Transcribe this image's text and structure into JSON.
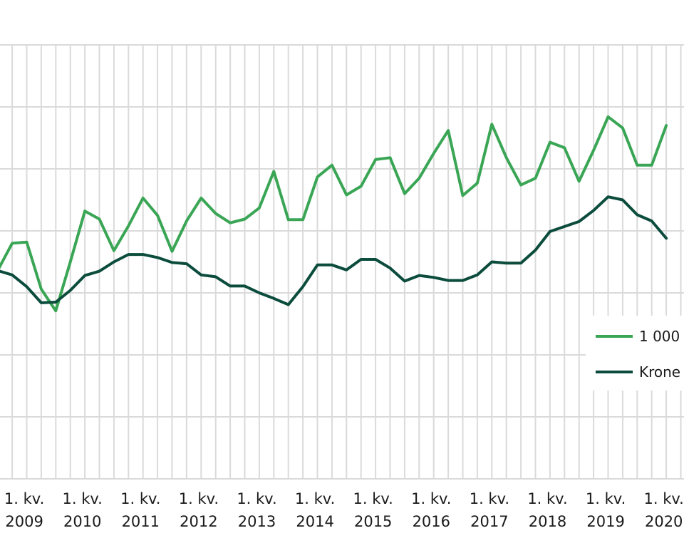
{
  "chart_data": {
    "type": "line",
    "title": "",
    "xlabel": "",
    "ylabel": "",
    "x": [
      "2008K4",
      "2009K1",
      "2009K2",
      "2009K3",
      "2009K4",
      "2010K1",
      "2010K2",
      "2010K3",
      "2010K4",
      "2011K1",
      "2011K2",
      "2011K3",
      "2011K4",
      "2012K1",
      "2012K2",
      "2012K3",
      "2012K4",
      "2013K1",
      "2013K2",
      "2013K3",
      "2013K4",
      "2014K1",
      "2014K2",
      "2014K3",
      "2014K4",
      "2015K1",
      "2015K2",
      "2015K3",
      "2015K4",
      "2016K1",
      "2016K2",
      "2016K3",
      "2016K4",
      "2017K1",
      "2017K2",
      "2017K3",
      "2017K4",
      "2018K1",
      "2018K2",
      "2018K3",
      "2018K4",
      "2019K1",
      "2019K2",
      "2019K3",
      "2019K4",
      "2020K1",
      "2020K2"
    ],
    "x_tick_labels": [
      {
        "line1": "1. kv.",
        "line2": "2009"
      },
      {
        "line1": "1. kv.",
        "line2": "2010"
      },
      {
        "line1": "1. kv.",
        "line2": "2011"
      },
      {
        "line1": "1. kv.",
        "line2": "2012"
      },
      {
        "line1": "1. kv.",
        "line2": "2013"
      },
      {
        "line1": "1. kv.",
        "line2": "2014"
      },
      {
        "line1": "1. kv.",
        "line2": "2015"
      },
      {
        "line1": "1. kv.",
        "line2": "2016"
      },
      {
        "line1": "1. kv.",
        "line2": "2017"
      },
      {
        "line1": "1. kv.",
        "line2": "2018"
      },
      {
        "line1": "1. kv.",
        "line2": "2019"
      },
      {
        "line1": "1. kv.",
        "line2": "2020"
      }
    ],
    "ylim": [
      0,
      7
    ],
    "grid": true,
    "legend_placement": "right",
    "series": [
      {
        "name": "1 000",
        "color": "#3aa655",
        "values": [
          3.36,
          3.8,
          3.82,
          3.06,
          2.71,
          3.5,
          4.32,
          4.19,
          3.68,
          4.08,
          4.53,
          4.25,
          3.67,
          4.16,
          4.53,
          4.28,
          4.13,
          4.19,
          4.37,
          4.96,
          4.18,
          4.18,
          4.87,
          5.06,
          4.58,
          4.72,
          5.15,
          5.18,
          4.6,
          4.85,
          5.25,
          5.62,
          4.57,
          4.77,
          5.72,
          5.18,
          4.74,
          4.85,
          5.43,
          5.34,
          4.8,
          5.3,
          5.84,
          5.66,
          5.06,
          5.06,
          5.7
        ]
      },
      {
        "name": "Krone",
        "color": "#0b4c3c",
        "values": [
          3.36,
          3.29,
          3.1,
          2.84,
          2.85,
          3.04,
          3.28,
          3.35,
          3.5,
          3.62,
          3.62,
          3.57,
          3.49,
          3.47,
          3.29,
          3.26,
          3.11,
          3.11,
          3.0,
          2.91,
          2.81,
          3.1,
          3.45,
          3.45,
          3.37,
          3.54,
          3.54,
          3.4,
          3.19,
          3.28,
          3.25,
          3.2,
          3.2,
          3.29,
          3.5,
          3.48,
          3.48,
          3.69,
          3.99,
          4.07,
          4.15,
          4.33,
          4.55,
          4.5,
          4.26,
          4.16,
          3.88
        ]
      }
    ]
  }
}
